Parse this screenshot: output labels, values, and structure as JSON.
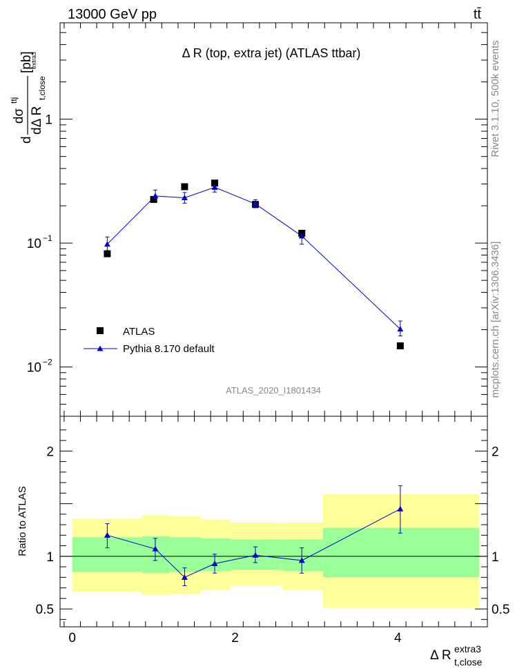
{
  "header": {
    "left": "13000 GeV pp",
    "right": "tt̄"
  },
  "side_labels": {
    "rivet": "Rivet 3.1.10,  500k events",
    "mcplots": "mcplots.cern.ch [arXiv:1306.3436]"
  },
  "colors": {
    "data": "#000000",
    "mc": "#0000cc",
    "band_inner": "#99ff99",
    "band_outer": "#ffff99"
  },
  "chart_data": [
    {
      "type": "scatter",
      "title": "Δ R (top, extra jet) (ATLAS ttbar)",
      "watermark": "ATLAS_2020_I1801434",
      "ylabel_parts": {
        "d": "d",
        "sigma": "dσ",
        "sigma_sup": "ttj",
        "denom": "dΔ R",
        "denom_sub": "t,close",
        "denom_sup": "extra3",
        "unit": "[pb]"
      },
      "yscale": "log",
      "ylim": [
        0.004,
        6
      ],
      "xlim": [
        -0.15,
        5.1
      ],
      "ytick_labels": [
        {
          "value": 1,
          "base": "1",
          "exp": ""
        },
        {
          "value": 0.1,
          "base": "10",
          "exp": "−1"
        },
        {
          "value": 0.01,
          "base": "10",
          "exp": "−2"
        }
      ],
      "legend": [
        {
          "label": "ATLAS",
          "marker": "square"
        },
        {
          "label": "Pythia 8.170 default",
          "marker": "triangle-line"
        }
      ],
      "legend_position": "bottom-left",
      "series": [
        {
          "name": "ATLAS",
          "x": [
            0.43,
            1.0,
            1.38,
            1.75,
            2.25,
            2.82,
            4.03
          ],
          "y": [
            0.082,
            0.225,
            0.285,
            0.305,
            0.205,
            0.12,
            0.0148
          ]
        },
        {
          "name": "Pythia 8.170 default",
          "x": [
            0.43,
            1.02,
            1.38,
            1.75,
            2.25,
            2.82,
            4.03
          ],
          "y": [
            0.098,
            0.24,
            0.232,
            0.282,
            0.207,
            0.114,
            0.0202
          ],
          "y_low": [
            0.087,
            0.218,
            0.21,
            0.258,
            0.193,
            0.098,
            0.0178
          ],
          "y_high": [
            0.112,
            0.268,
            0.256,
            0.31,
            0.224,
            0.126,
            0.0235
          ]
        }
      ]
    },
    {
      "type": "scatter",
      "ylabel": "Ratio to ATLAS",
      "xlabel_main": "Δ R",
      "xlabel_sub": "t,close",
      "xlabel_sup": "extra3",
      "ylim": [
        0.33,
        2.33
      ],
      "xlim": [
        -0.15,
        5.1
      ],
      "yticks": [
        0.5,
        1,
        2
      ],
      "ytick_labels": [
        "0.5",
        "1",
        "2"
      ],
      "xticks": [
        0,
        2,
        4
      ],
      "xtick_labels": [
        "0",
        "2",
        "4"
      ],
      "bands": [
        {
          "x0": 0.0,
          "x1": 0.86,
          "inner": [
            0.85,
            1.18
          ],
          "outer": [
            0.66,
            1.36
          ]
        },
        {
          "x0": 0.86,
          "x1": 1.2,
          "inner": [
            0.84,
            1.19
          ],
          "outer": [
            0.63,
            1.39
          ]
        },
        {
          "x0": 1.2,
          "x1": 1.58,
          "inner": [
            0.85,
            1.18
          ],
          "outer": [
            0.64,
            1.38
          ]
        },
        {
          "x0": 1.58,
          "x1": 1.94,
          "inner": [
            0.86,
            1.17
          ],
          "outer": [
            0.68,
            1.35
          ]
        },
        {
          "x0": 1.94,
          "x1": 2.58,
          "inner": [
            0.87,
            1.16
          ],
          "outer": [
            0.72,
            1.32
          ]
        },
        {
          "x0": 2.58,
          "x1": 3.08,
          "inner": [
            0.86,
            1.16
          ],
          "outer": [
            0.68,
            1.32
          ]
        },
        {
          "x0": 3.08,
          "x1": 5.0,
          "inner": [
            0.8,
            1.27
          ],
          "outer": [
            0.51,
            1.59
          ]
        }
      ],
      "series": [
        {
          "name": "Pythia 8.170 default",
          "x": [
            0.43,
            1.02,
            1.38,
            1.75,
            2.25,
            2.82,
            4.03
          ],
          "y": [
            1.2,
            1.07,
            0.8,
            0.93,
            1.01,
            0.96,
            1.45
          ],
          "y_low": [
            1.08,
            0.96,
            0.72,
            0.84,
            0.94,
            0.84,
            1.22
          ],
          "y_high": [
            1.31,
            1.17,
            0.89,
            1.02,
            1.09,
            1.08,
            1.67
          ]
        }
      ]
    }
  ]
}
